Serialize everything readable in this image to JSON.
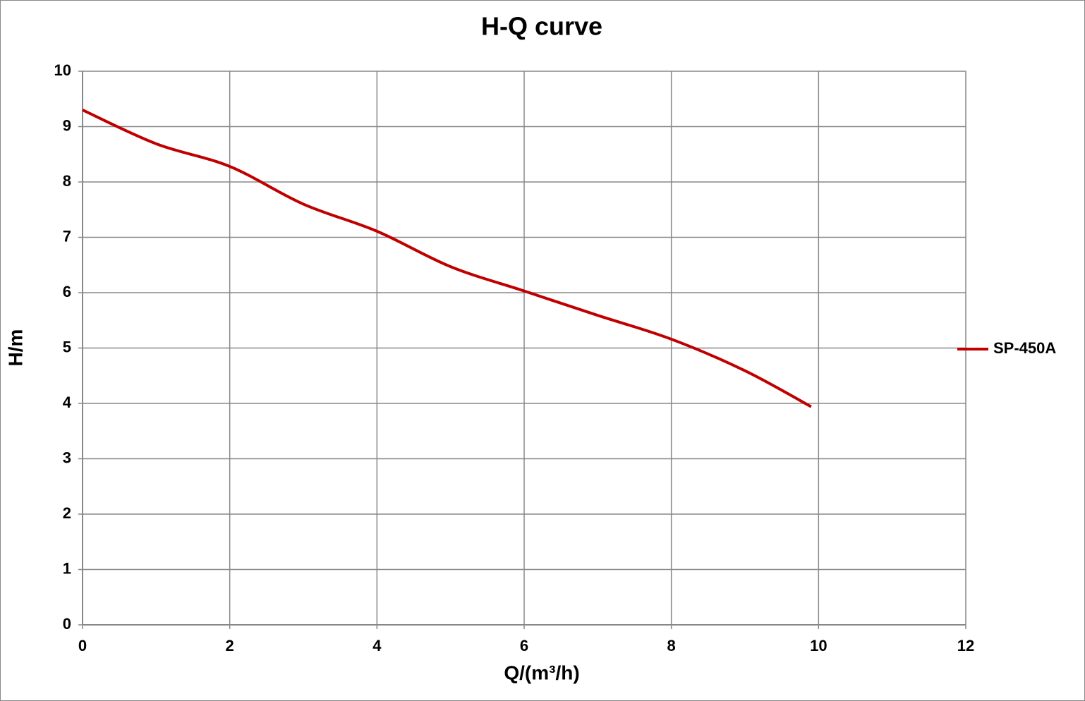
{
  "chart_data": {
    "type": "line",
    "title": "H-Q  curve",
    "x_label": "Q/(m³/h)",
    "y_label": "H/m",
    "x": [
      0,
      1,
      2,
      3,
      4,
      5,
      6,
      7,
      8,
      9,
      9.9
    ],
    "series": [
      {
        "name": "SP-450A",
        "color": "#c00000",
        "values": [
          9.3,
          8.69,
          8.28,
          7.6,
          7.11,
          6.47,
          6.03,
          5.59,
          5.16,
          4.59,
          3.94
        ]
      }
    ],
    "xlim": [
      0,
      12
    ],
    "xticks": [
      0,
      2,
      4,
      6,
      8,
      10,
      12
    ],
    "ylim": [
      0,
      10
    ],
    "yticks": [
      0,
      1,
      2,
      3,
      4,
      5,
      6,
      7,
      8,
      9,
      10
    ],
    "grid": true,
    "legend": "right"
  }
}
